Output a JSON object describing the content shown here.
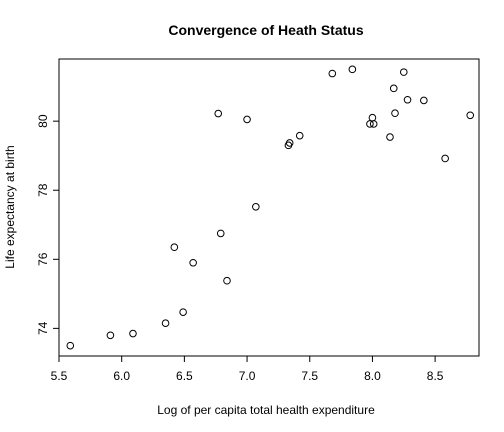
{
  "chart_data": {
    "type": "scatter",
    "title": "Convergence of Heath Status",
    "xlabel": "Log of per capita total health expenditure",
    "ylabel": "Life expectancy at birth",
    "xlim": [
      5.5,
      8.85
    ],
    "ylim": [
      73.2,
      81.8
    ],
    "xticks": [
      "5.5",
      "6.0",
      "6.5",
      "7.0",
      "7.5",
      "8.0",
      "8.5"
    ],
    "yticks": [
      "74",
      "76",
      "78",
      "80"
    ],
    "grid": false,
    "legend": "none",
    "marker": "open-circle",
    "points": [
      {
        "x": 5.59,
        "y": 73.5
      },
      {
        "x": 5.91,
        "y": 73.8
      },
      {
        "x": 6.09,
        "y": 73.85
      },
      {
        "x": 6.35,
        "y": 74.15
      },
      {
        "x": 6.49,
        "y": 74.47
      },
      {
        "x": 6.42,
        "y": 76.35
      },
      {
        "x": 6.57,
        "y": 75.9
      },
      {
        "x": 6.79,
        "y": 76.75
      },
      {
        "x": 6.84,
        "y": 75.38
      },
      {
        "x": 6.77,
        "y": 80.22
      },
      {
        "x": 7.0,
        "y": 80.05
      },
      {
        "x": 7.07,
        "y": 77.52
      },
      {
        "x": 7.33,
        "y": 79.3
      },
      {
        "x": 7.34,
        "y": 79.37
      },
      {
        "x": 7.42,
        "y": 79.58
      },
      {
        "x": 7.68,
        "y": 81.38
      },
      {
        "x": 7.84,
        "y": 81.5
      },
      {
        "x": 7.98,
        "y": 79.92
      },
      {
        "x": 8.0,
        "y": 80.1
      },
      {
        "x": 8.01,
        "y": 79.92
      },
      {
        "x": 8.14,
        "y": 79.54
      },
      {
        "x": 8.17,
        "y": 80.95
      },
      {
        "x": 8.18,
        "y": 80.23
      },
      {
        "x": 8.25,
        "y": 81.42
      },
      {
        "x": 8.28,
        "y": 80.62
      },
      {
        "x": 8.41,
        "y": 80.6
      },
      {
        "x": 8.58,
        "y": 78.92
      },
      {
        "x": 8.78,
        "y": 80.17
      }
    ]
  }
}
